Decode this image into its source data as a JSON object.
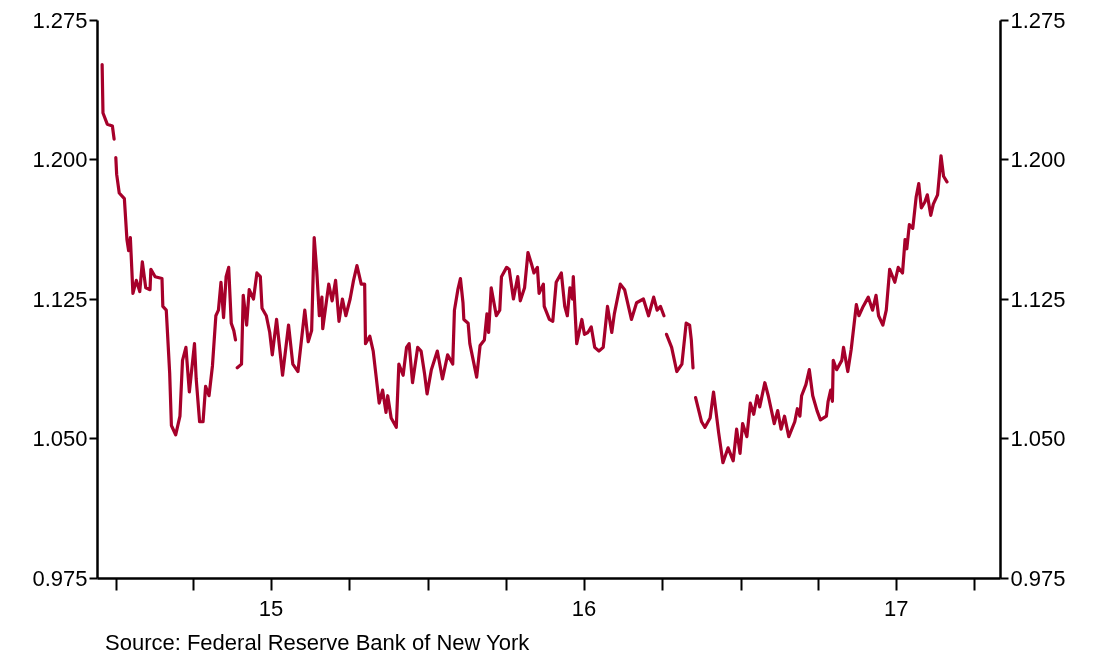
{
  "chart_data": {
    "type": "line",
    "annotations": [
      "Source:  Federal Reserve Bank of New York"
    ],
    "x": [
      "2014-12-16",
      "2014-12-17",
      "2014-12-22",
      "2014-12-28",
      "2014-12-30",
      "2014-12-31",
      "2015-01-01",
      "2015-01-02",
      "2015-01-05",
      "2015-01-11",
      "2015-01-14",
      "2015-01-16",
      "2015-01-18",
      "2015-01-21",
      "2015-01-25",
      "2015-01-29",
      "2015-02-01",
      "2015-02-05",
      "2015-02-10",
      "2015-02-11",
      "2015-02-16",
      "2015-02-24",
      "2015-02-25",
      "2015-03-01",
      "2015-03-05",
      "2015-03-07",
      "2015-03-12",
      "2015-03-17",
      "2015-03-20",
      "2015-03-24",
      "2015-03-28",
      "2015-04-03",
      "2015-04-05",
      "2015-04-09",
      "2015-04-13",
      "2015-04-16",
      "2015-04-20",
      "2015-04-24",
      "2015-04-28",
      "2015-05-01",
      "2015-05-04",
      "2015-05-07",
      "2015-05-10",
      "2015-05-13",
      "2015-05-16",
      "2015-05-19",
      "2015-05-21",
      "2015-05-22",
      "2015-05-23",
      "2015-05-28",
      "2015-05-30",
      "2015-06-03",
      "2015-06-06",
      "2015-06-11",
      "2015-06-15",
      "2015-06-19",
      "2015-06-21",
      "2015-06-26",
      "2015-06-30",
      "2015-07-03",
      "2015-07-08",
      "2015-07-15",
      "2015-07-22",
      "2015-07-27",
      "2015-08-02",
      "2015-08-10",
      "2015-08-14",
      "2015-08-18",
      "2015-08-21",
      "2015-08-24",
      "2015-08-27",
      "2015-08-30",
      "2015-08-31",
      "2015-09-07",
      "2015-09-11",
      "2015-09-15",
      "2015-09-19",
      "2015-09-23",
      "2015-09-27",
      "2015-10-02",
      "2015-10-06",
      "2015-10-10",
      "2015-10-15",
      "2015-10-19",
      "2015-10-20",
      "2015-10-25",
      "2015-10-29",
      "2015-11-01",
      "2015-11-05",
      "2015-11-09",
      "2015-11-13",
      "2015-11-15",
      "2015-11-19",
      "2015-11-25",
      "2015-11-28",
      "2015-12-03",
      "2015-12-07",
      "2015-12-10",
      "2015-12-14",
      "2015-12-20",
      "2015-12-24",
      "2015-12-28",
      "2015-12-31",
      "2016-01-05",
      "2016-01-12",
      "2016-01-18",
      "2016-01-24",
      "2016-01-30",
      "2016-02-01",
      "2016-02-05",
      "2016-02-08",
      "2016-02-11",
      "2016-02-12",
      "2016-02-17",
      "2016-02-19",
      "2016-02-27",
      "2016-03-02",
      "2016-03-07",
      "2016-03-10",
      "2016-03-12",
      "2016-03-15",
      "2016-03-21",
      "2016-03-25",
      "2016-03-27",
      "2016-04-02",
      "2016-04-05",
      "2016-04-10",
      "2016-04-15",
      "2016-04-18",
      "2016-04-23",
      "2016-04-27",
      "2016-05-01",
      "2016-05-04",
      "2016-05-08",
      "2016-05-10",
      "2016-05-15",
      "2016-05-16",
      "2016-05-22",
      "2016-05-26",
      "2016-05-30",
      "2016-06-05",
      "2016-06-09",
      "2016-06-12",
      "2016-06-15",
      "2016-06-18",
      "2016-06-19",
      "2016-06-23",
      "2016-06-29",
      "2016-07-02",
      "2016-07-06",
      "2016-07-10",
      "2016-07-14",
      "2016-07-19",
      "2016-07-24",
      "2016-07-29",
      "2016-08-03",
      "2016-08-06",
      "2016-08-13",
      "2016-08-18",
      "2016-08-26",
      "2016-09-01",
      "2016-09-09",
      "2016-09-15",
      "2016-09-21",
      "2016-09-25",
      "2016-09-29",
      "2016-10-03",
      "2016-10-05",
      "2016-10-06",
      "2016-10-12",
      "2016-10-18",
      "2016-10-24",
      "2016-10-29",
      "2016-11-02",
      "2016-11-04",
      "2016-11-06",
      "2016-11-07",
      "2016-11-09",
      "2016-11-16",
      "2016-11-20",
      "2016-11-26",
      "2016-11-30",
      "2016-12-06",
      "2016-12-11",
      "2016-12-17",
      "2016-12-23",
      "2016-12-27",
      "2016-12-31",
      "2017-01-03",
      "2017-01-08",
      "2017-01-12",
      "2017-01-16",
      "2017-01-20",
      "2017-01-23",
      "2017-01-29",
      "2017-02-02",
      "2017-02-09",
      "2017-02-13",
      "2017-02-17",
      "2017-02-21",
      "2017-02-26",
      "2017-03-05",
      "2017-03-08",
      "2017-03-11",
      "2017-03-13",
      "2017-03-18",
      "2017-03-22",
      "2017-03-26",
      "2017-03-31",
      "2017-04-04",
      "2017-04-11",
      "2017-04-13",
      "2017-04-16",
      "2017-04-18",
      "2017-04-19",
      "2017-04-23",
      "2017-04-29",
      "2017-05-01",
      "2017-05-06",
      "2017-05-10",
      "2017-05-16",
      "2017-05-19",
      "2017-05-24",
      "2017-05-30",
      "2017-06-04",
      "2017-06-08",
      "2017-06-11",
      "2017-06-16",
      "2017-06-20",
      "2017-06-24",
      "2017-06-30",
      "2017-07-04",
      "2017-07-09",
      "2017-07-12",
      "2017-07-14",
      "2017-07-17",
      "2017-07-21",
      "2017-07-25",
      "2017-07-28",
      "2017-07-31",
      "2017-08-04",
      "2017-08-07",
      "2017-08-11",
      "2017-08-14",
      "2017-08-19",
      "2017-08-21",
      "2017-08-23",
      "2017-08-26",
      "2017-08-30"
    ],
    "series": [
      {
        "color": "#a6002a",
        "values": [
          1.251,
          1.225,
          1.219,
          1.218,
          1.211,
          null,
          1.201,
          1.192,
          1.182,
          1.179,
          1.157,
          1.151,
          1.158,
          1.128,
          1.135,
          1.129,
          1.145,
          1.131,
          1.13,
          1.141,
          1.137,
          1.136,
          1.121,
          1.119,
          1.085,
          1.057,
          1.052,
          1.062,
          1.092,
          1.099,
          1.075,
          1.101,
          1.082,
          1.059,
          1.059,
          1.078,
          1.073,
          1.089,
          1.116,
          1.119,
          1.134,
          1.115,
          1.137,
          1.142,
          1.112,
          1.108,
          1.103,
          null,
          1.088,
          1.09,
          1.127,
          1.111,
          1.13,
          1.125,
          1.139,
          1.137,
          1.12,
          1.116,
          1.107,
          1.095,
          1.114,
          1.084,
          1.111,
          1.09,
          1.086,
          1.119,
          1.102,
          1.108,
          1.158,
          1.14,
          1.116,
          1.126,
          1.109,
          1.133,
          1.124,
          1.135,
          1.113,
          1.125,
          1.116,
          1.125,
          1.135,
          1.143,
          1.133,
          1.133,
          1.101,
          1.105,
          1.097,
          1.085,
          1.069,
          1.076,
          1.064,
          1.073,
          1.061,
          1.056,
          1.09,
          1.084,
          1.099,
          1.101,
          1.08,
          1.099,
          1.097,
          1.085,
          1.074,
          1.087,
          1.097,
          1.082,
          1.095,
          1.09,
          1.119,
          1.13,
          1.136,
          1.123,
          1.114,
          1.112,
          1.101,
          1.083,
          1.1,
          1.103,
          1.117,
          1.107,
          1.131,
          1.116,
          1.119,
          1.137,
          1.142,
          1.141,
          1.125,
          1.137,
          1.124,
          1.131,
          1.15,
          1.144,
          1.139,
          1.142,
          1.128,
          1.133,
          1.121,
          1.114,
          1.113,
          1.134,
          1.139,
          1.121,
          1.116,
          1.131,
          1.125,
          1.137,
          1.101,
          1.114,
          1.106,
          1.107,
          1.11,
          1.099,
          1.097,
          1.099,
          1.121,
          1.107,
          1.117,
          1.133,
          1.13,
          1.114,
          1.123,
          1.125,
          1.116,
          1.126,
          1.119,
          1.121,
          1.116,
          null,
          1.106,
          1.099,
          1.086,
          1.09,
          1.112,
          1.111,
          1.103,
          1.088,
          null,
          1.072,
          1.059,
          1.056,
          1.061,
          1.075,
          1.053,
          1.037,
          1.045,
          1.038,
          1.055,
          1.042,
          1.058,
          1.051,
          1.069,
          1.063,
          1.073,
          1.067,
          1.08,
          1.073,
          1.058,
          1.065,
          1.055,
          1.062,
          1.051,
          1.059,
          1.066,
          1.062,
          1.073,
          1.079,
          1.087,
          1.073,
          1.065,
          1.06,
          1.062,
          1.07,
          1.076,
          1.07,
          1.092,
          1.087,
          1.092,
          1.099,
          1.086,
          1.098,
          1.122,
          1.116,
          1.121,
          1.126,
          1.119,
          1.127,
          1.116,
          1.111,
          1.119,
          1.141,
          1.134,
          1.142,
          1.139,
          1.157,
          1.152,
          1.165,
          1.163,
          1.18,
          1.187,
          1.174,
          1.177,
          1.181,
          1.17,
          1.176,
          1.181,
          1.191,
          1.202,
          1.191,
          1.188
        ]
      }
    ],
    "xlim": [
      "2014-12-10",
      "2017-10-31"
    ],
    "xticks": [
      {
        "value": "2015-01-01",
        "label": null
      },
      {
        "value": "2015-04-01",
        "label": null
      },
      {
        "value": "2015-07-01",
        "label": "15"
      },
      {
        "value": "2015-10-01",
        "label": null
      },
      {
        "value": "2016-01-01",
        "label": null
      },
      {
        "value": "2016-04-01",
        "label": null
      },
      {
        "value": "2016-07-01",
        "label": "16"
      },
      {
        "value": "2016-10-01",
        "label": null
      },
      {
        "value": "2017-01-01",
        "label": null
      },
      {
        "value": "2017-04-01",
        "label": null
      },
      {
        "value": "2017-07-01",
        "label": "17"
      },
      {
        "value": "2017-10-01",
        "label": null
      }
    ],
    "ylim": [
      0.975,
      1.275
    ],
    "yticks": [
      {
        "value": 0.975,
        "label": "0.975"
      },
      {
        "value": 1.05,
        "label": "1.050"
      },
      {
        "value": 1.125,
        "label": "1.125"
      },
      {
        "value": 1.2,
        "label": "1.200"
      },
      {
        "value": 1.275,
        "label": "1.275"
      }
    ],
    "y2lim": [
      0.975,
      1.275
    ],
    "y2ticks": [
      {
        "value": 0.975,
        "label": "0.975"
      },
      {
        "value": 1.05,
        "label": "1.050"
      },
      {
        "value": 1.125,
        "label": "1.125"
      },
      {
        "value": 1.2,
        "label": "1.200"
      },
      {
        "value": 1.275,
        "label": "1.275"
      }
    ]
  }
}
